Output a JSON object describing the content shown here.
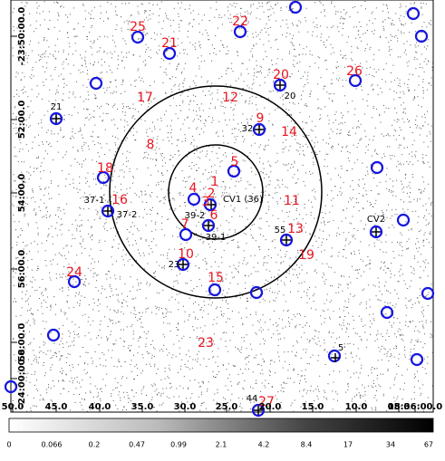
{
  "image": {
    "ra_ticks": [
      "50.0",
      "45.0",
      "40.0",
      "35.0",
      "30.0",
      "25.0",
      "20.0",
      "15.0",
      "10.0",
      "05.0",
      "18:36:00.0"
    ],
    "dec_ticks": [
      "-23:50:00.0",
      "52:00.0",
      "54:00.0",
      "56:00.0",
      "58:00.0",
      "-24:00:00.0"
    ],
    "colorbar_ticks": [
      "0",
      "0.066",
      "0.2",
      "0.47",
      "0.99",
      "2.1",
      "4.2",
      "8.4",
      "17",
      "34",
      "67"
    ],
    "source_labels": [
      "25",
      "22",
      "21",
      "20",
      "26",
      "17",
      "12",
      "9",
      "14",
      "8",
      "5",
      "18",
      "1",
      "4",
      "2",
      "3",
      "6",
      "11",
      "16",
      "13",
      "7",
      "19",
      "10",
      "15",
      "24",
      "23",
      "27"
    ],
    "annotations": [
      "21",
      "20",
      "32",
      "CV1 (36)",
      "39-2",
      "39-1",
      "37-1",
      "37-2",
      "55",
      "CV2",
      "23",
      "5",
      "44"
    ]
  }
}
